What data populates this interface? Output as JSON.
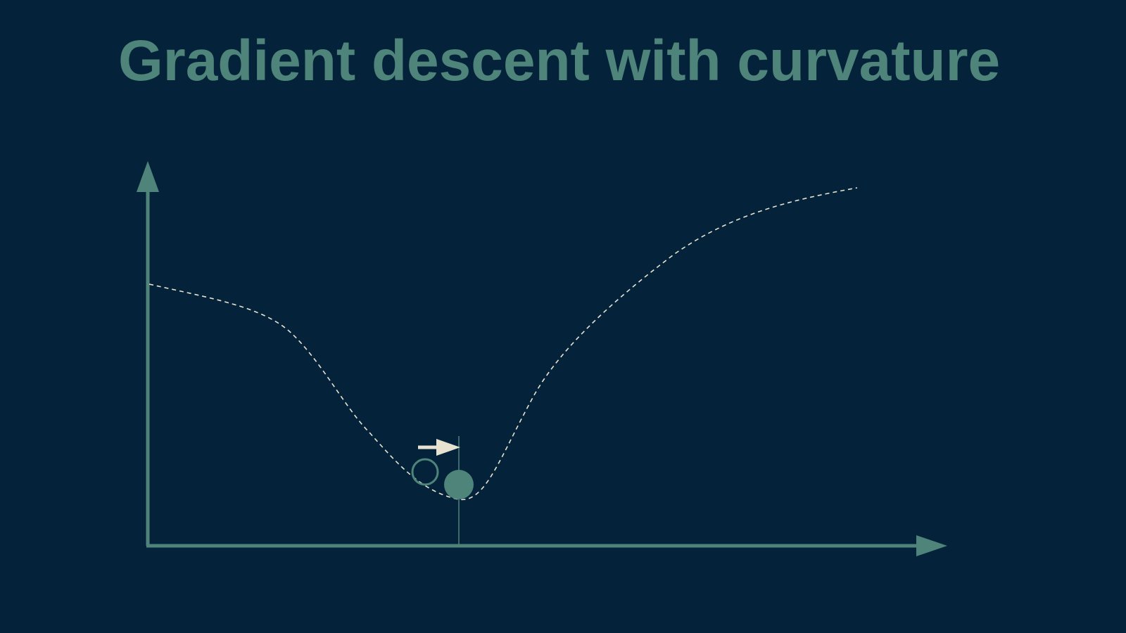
{
  "slide": {
    "title": "Gradient descent with curvature"
  },
  "colors": {
    "background": "#04233a",
    "accent": "#4e8479",
    "curve": "#e7e3d0",
    "arrow": "#e7e3d0"
  },
  "diagram": {
    "axes": [
      "y-axis-arrow",
      "x-axis-arrow"
    ],
    "curve_style": "dashed",
    "markers": [
      "previous-position-circle-outline",
      "current-position-circle-filled",
      "step-direction-arrow",
      "position-guide-line"
    ]
  }
}
